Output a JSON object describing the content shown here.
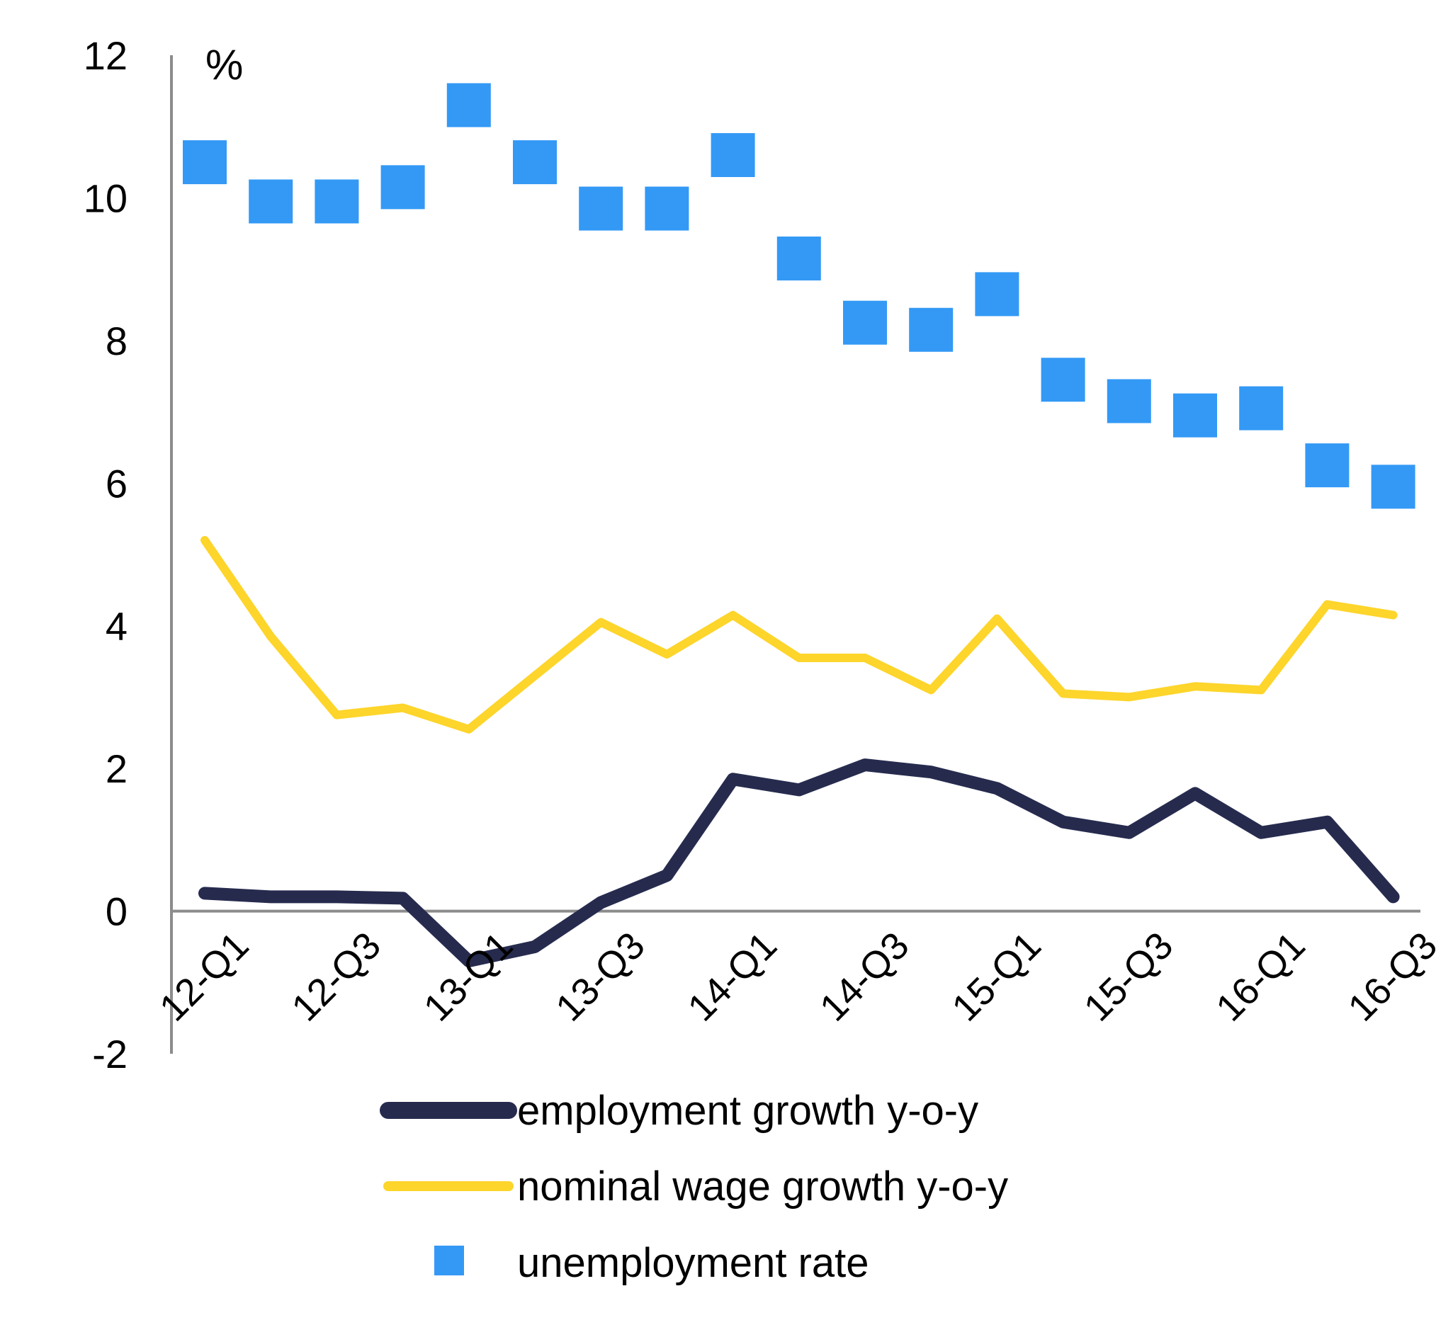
{
  "chart_data": {
    "type": "line",
    "unit_label": "%",
    "ylim": [
      -2,
      12
    ],
    "y_ticks": [
      "-2",
      "0",
      "2",
      "4",
      "6",
      "8",
      "10",
      "12"
    ],
    "x": [
      "12-Q1",
      "12-Q2",
      "12-Q3",
      "12-Q4",
      "13-Q1",
      "13-Q2",
      "13-Q3",
      "13-Q4",
      "14-Q1",
      "14-Q2",
      "14-Q3",
      "14-Q4",
      "15-Q1",
      "15-Q2",
      "15-Q3",
      "15-Q4",
      "16-Q1",
      "16-Q2",
      "16-Q3"
    ],
    "x_tick_labels": [
      "12-Q1",
      "12-Q3",
      "13-Q1",
      "13-Q3",
      "14-Q1",
      "14-Q3",
      "15-Q1",
      "15-Q3",
      "16-Q1",
      "16-Q3"
    ],
    "grid": false,
    "legend_position": "bottom",
    "series": [
      {
        "name": "employment growth y-o-y",
        "type": "line",
        "color": "#262b4e",
        "values": [
          0.25,
          0.2,
          0.2,
          0.18,
          -0.7,
          -0.5,
          0.12,
          0.5,
          1.85,
          1.7,
          2.05,
          1.95,
          1.72,
          1.25,
          1.1,
          1.65,
          1.1,
          1.25,
          0.2
        ]
      },
      {
        "name": "nominal wage growth y-o-y",
        "type": "line",
        "color": "#fdd52b",
        "values": [
          5.2,
          3.85,
          2.75,
          2.85,
          2.55,
          3.3,
          4.05,
          3.6,
          4.15,
          3.55,
          3.55,
          3.1,
          4.1,
          3.05,
          3.0,
          3.15,
          3.1,
          4.3,
          4.15
        ]
      },
      {
        "name": "unemployment rate",
        "type": "scatter",
        "marker": "square",
        "color": "#3399f5",
        "values": [
          10.5,
          9.95,
          9.95,
          10.15,
          11.3,
          10.5,
          9.85,
          9.85,
          10.6,
          9.15,
          8.25,
          8.15,
          8.65,
          7.45,
          7.15,
          6.95,
          7.05,
          6.25,
          5.95
        ]
      }
    ]
  }
}
